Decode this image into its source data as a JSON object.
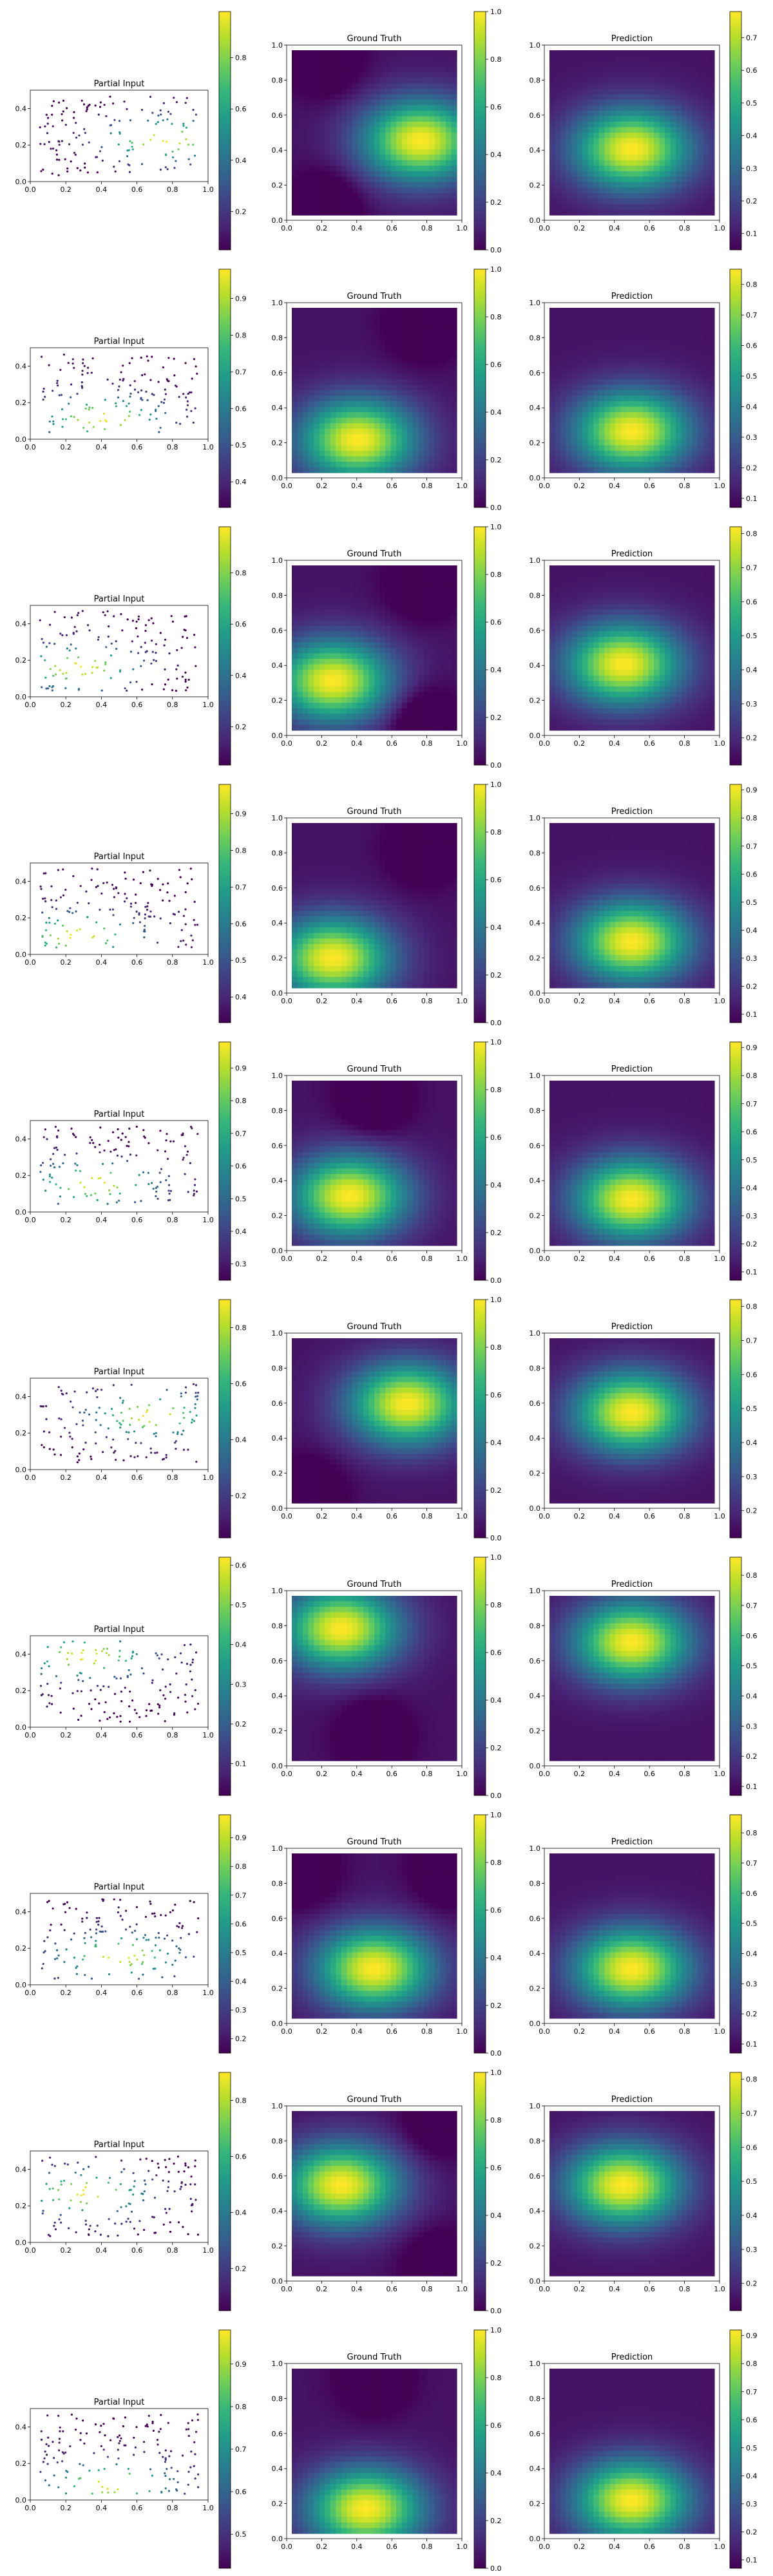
{
  "figure": {
    "rows": 10,
    "panel_titles": {
      "partial": "Partial Input",
      "truth": "Ground Truth",
      "pred": "Prediction"
    }
  },
  "chart_data": [
    {
      "row": 1,
      "type": "scatter+heatmap",
      "partial": {
        "xlim": [
          0,
          1
        ],
        "ylim": [
          0,
          0.5
        ],
        "xticks": [
          "0.0",
          "0.2",
          "0.4",
          "0.6",
          "0.8",
          "1.0"
        ],
        "yticks": [
          "0.0",
          "0.2",
          "0.4"
        ],
        "cbar_ticks": [
          "0.2",
          "0.4",
          "0.6",
          "0.8"
        ],
        "cbar_range": [
          0.05,
          0.98
        ]
      },
      "truth": {
        "xlim": [
          0,
          1
        ],
        "ylim": [
          0,
          1
        ],
        "xticks": [
          "0.0",
          "0.2",
          "0.4",
          "0.6",
          "0.8",
          "1.0"
        ],
        "yticks": [
          "0.0",
          "0.2",
          "0.4",
          "0.6",
          "0.8",
          "1.0"
        ],
        "cbar_ticks": [
          "0.0",
          "0.2",
          "0.4",
          "0.6",
          "0.8",
          "1.0"
        ],
        "cbar_range": [
          0,
          1
        ],
        "peak": [
          0.78,
          0.45
        ],
        "lows": [
          [
            0.2,
            0.95
          ],
          [
            0.2,
            0.05
          ]
        ]
      },
      "pred": {
        "xticks": [
          "0.0",
          "0.2",
          "0.4",
          "0.6",
          "0.8",
          "1.0"
        ],
        "yticks": [
          "0.0",
          "0.2",
          "0.4",
          "0.6",
          "0.8",
          "1.0"
        ],
        "cbar_ticks": [
          "0.1",
          "0.2",
          "0.3",
          "0.4",
          "0.5",
          "0.6",
          "0.7"
        ],
        "cbar_range": [
          0.05,
          0.78
        ],
        "peak": [
          0.5,
          0.4
        ]
      }
    },
    {
      "row": 2,
      "type": "scatter+heatmap",
      "partial": {
        "xlim": [
          0,
          1
        ],
        "ylim": [
          0,
          0.5
        ],
        "xticks": [
          "0.0",
          "0.2",
          "0.4",
          "0.6",
          "0.8",
          "1.0"
        ],
        "yticks": [
          "0.0",
          "0.2",
          "0.4"
        ],
        "cbar_ticks": [
          "0.4",
          "0.5",
          "0.6",
          "0.7",
          "0.8",
          "0.9"
        ],
        "cbar_range": [
          0.33,
          0.98
        ]
      },
      "truth": {
        "xlim": [
          0,
          1
        ],
        "ylim": [
          0,
          1
        ],
        "xticks": [
          "0.0",
          "0.2",
          "0.4",
          "0.6",
          "0.8",
          "1.0"
        ],
        "yticks": [
          "0.0",
          "0.2",
          "0.4",
          "0.6",
          "0.8",
          "1.0"
        ],
        "cbar_ticks": [
          "0.0",
          "0.2",
          "0.4",
          "0.6",
          "0.8",
          "1.0"
        ],
        "cbar_range": [
          0,
          1
        ],
        "peak": [
          0.4,
          0.2
        ],
        "lows": [
          [
            0.8,
            0.9
          ]
        ]
      },
      "pred": {
        "xticks": [
          "0.0",
          "0.2",
          "0.4",
          "0.6",
          "0.8",
          "1.0"
        ],
        "yticks": [
          "0.0",
          "0.2",
          "0.4",
          "0.6",
          "0.8",
          "1.0"
        ],
        "cbar_ticks": [
          "0.1",
          "0.2",
          "0.3",
          "0.4",
          "0.5",
          "0.6",
          "0.7",
          "0.8"
        ],
        "cbar_range": [
          0.07,
          0.85
        ],
        "peak": [
          0.5,
          0.25
        ]
      }
    },
    {
      "row": 3,
      "type": "scatter+heatmap",
      "partial": {
        "xlim": [
          0,
          1
        ],
        "ylim": [
          0,
          0.5
        ],
        "xticks": [
          "0.0",
          "0.2",
          "0.4",
          "0.6",
          "0.8",
          "1.0"
        ],
        "yticks": [
          "0.0",
          "0.2",
          "0.4"
        ],
        "cbar_ticks": [
          "0.2",
          "0.4",
          "0.6",
          "0.8"
        ],
        "cbar_range": [
          0.05,
          0.98
        ]
      },
      "truth": {
        "xlim": [
          0,
          1
        ],
        "ylim": [
          0,
          1
        ],
        "xticks": [
          "0.0",
          "0.2",
          "0.4",
          "0.6",
          "0.8",
          "1.0"
        ],
        "yticks": [
          "0.0",
          "0.2",
          "0.4",
          "0.6",
          "0.8",
          "1.0"
        ],
        "cbar_ticks": [
          "0.0",
          "0.2",
          "0.4",
          "0.6",
          "0.8",
          "1.0"
        ],
        "cbar_range": [
          0,
          1
        ],
        "peak": [
          0.25,
          0.3
        ],
        "lows": [
          [
            0.8,
            0.9
          ],
          [
            0.8,
            0.05
          ]
        ]
      },
      "pred": {
        "xticks": [
          "0.0",
          "0.2",
          "0.4",
          "0.6",
          "0.8",
          "1.0"
        ],
        "yticks": [
          "0.0",
          "0.2",
          "0.4",
          "0.6",
          "0.8",
          "1.0"
        ],
        "cbar_ticks": [
          "0.2",
          "0.3",
          "0.4",
          "0.5",
          "0.6",
          "0.7",
          "0.8"
        ],
        "cbar_range": [
          0.12,
          0.82
        ],
        "peak": [
          0.45,
          0.4
        ]
      }
    },
    {
      "row": 4,
      "type": "scatter+heatmap",
      "partial": {
        "xlim": [
          0,
          1
        ],
        "ylim": [
          0,
          0.5
        ],
        "xticks": [
          "0.0",
          "0.2",
          "0.4",
          "0.6",
          "0.8",
          "1.0"
        ],
        "yticks": [
          "0.0",
          "0.2",
          "0.4"
        ],
        "cbar_ticks": [
          "0.4",
          "0.5",
          "0.6",
          "0.7",
          "0.8",
          "0.9"
        ],
        "cbar_range": [
          0.33,
          0.98
        ]
      },
      "truth": {
        "xlim": [
          0,
          1
        ],
        "ylim": [
          0,
          1
        ],
        "xticks": [
          "0.0",
          "0.2",
          "0.4",
          "0.6",
          "0.8",
          "1.0"
        ],
        "yticks": [
          "0.0",
          "0.2",
          "0.4",
          "0.6",
          "0.8",
          "1.0"
        ],
        "cbar_ticks": [
          "0.0",
          "0.2",
          "0.4",
          "0.6",
          "0.8",
          "1.0"
        ],
        "cbar_range": [
          0,
          1
        ],
        "peak": [
          0.25,
          0.18
        ],
        "lows": [
          [
            0.8,
            0.85
          ]
        ]
      },
      "pred": {
        "xticks": [
          "0.0",
          "0.2",
          "0.4",
          "0.6",
          "0.8",
          "1.0"
        ],
        "yticks": [
          "0.0",
          "0.2",
          "0.4",
          "0.6",
          "0.8",
          "1.0"
        ],
        "cbar_ticks": [
          "0.1",
          "0.2",
          "0.3",
          "0.4",
          "0.5",
          "0.6",
          "0.7",
          "0.8",
          "0.9"
        ],
        "cbar_range": [
          0.07,
          0.92
        ],
        "peak": [
          0.5,
          0.28
        ]
      }
    },
    {
      "row": 5,
      "type": "scatter+heatmap",
      "partial": {
        "xlim": [
          0,
          1
        ],
        "ylim": [
          0,
          0.5
        ],
        "xticks": [
          "0.0",
          "0.2",
          "0.4",
          "0.6",
          "0.8",
          "1.0"
        ],
        "yticks": [
          "0.0",
          "0.2",
          "0.4"
        ],
        "cbar_ticks": [
          "0.3",
          "0.4",
          "0.5",
          "0.6",
          "0.7",
          "0.8",
          "0.9"
        ],
        "cbar_range": [
          0.25,
          0.98
        ]
      },
      "truth": {
        "xlim": [
          0,
          1
        ],
        "ylim": [
          0,
          1
        ],
        "xticks": [
          "0.0",
          "0.2",
          "0.4",
          "0.6",
          "0.8",
          "1.0"
        ],
        "yticks": [
          "0.0",
          "0.2",
          "0.4",
          "0.6",
          "0.8",
          "1.0"
        ],
        "cbar_ticks": [
          "0.0",
          "0.2",
          "0.4",
          "0.6",
          "0.8",
          "1.0"
        ],
        "cbar_range": [
          0,
          1
        ],
        "peak": [
          0.35,
          0.3
        ],
        "lows": [
          [
            0.5,
            0.9
          ]
        ]
      },
      "pred": {
        "xticks": [
          "0.0",
          "0.2",
          "0.4",
          "0.6",
          "0.8",
          "1.0"
        ],
        "yticks": [
          "0.0",
          "0.2",
          "0.4",
          "0.6",
          "0.8",
          "1.0"
        ],
        "cbar_ticks": [
          "0.1",
          "0.2",
          "0.3",
          "0.4",
          "0.5",
          "0.6",
          "0.7",
          "0.8",
          "0.9"
        ],
        "cbar_range": [
          0.07,
          0.92
        ],
        "peak": [
          0.5,
          0.28
        ]
      }
    },
    {
      "row": 6,
      "type": "scatter+heatmap",
      "partial": {
        "xlim": [
          0,
          1
        ],
        "ylim": [
          0,
          0.5
        ],
        "xticks": [
          "0.0",
          "0.2",
          "0.4",
          "0.6",
          "0.8",
          "1.0"
        ],
        "yticks": [
          "0.0",
          "0.2",
          "0.4"
        ],
        "cbar_ticks": [
          "0.2",
          "0.4",
          "0.6",
          "0.8"
        ],
        "cbar_range": [
          0.05,
          0.9
        ]
      },
      "truth": {
        "xlim": [
          0,
          1
        ],
        "ylim": [
          0,
          1
        ],
        "xticks": [
          "0.0",
          "0.2",
          "0.4",
          "0.6",
          "0.8",
          "1.0"
        ],
        "yticks": [
          "0.0",
          "0.2",
          "0.4",
          "0.6",
          "0.8",
          "1.0"
        ],
        "cbar_ticks": [
          "0.0",
          "0.2",
          "0.4",
          "0.6",
          "0.8",
          "1.0"
        ],
        "cbar_range": [
          0,
          1
        ],
        "peak": [
          0.7,
          0.6
        ],
        "lows": [
          [
            0.1,
            0.05
          ]
        ]
      },
      "pred": {
        "xticks": [
          "0.0",
          "0.2",
          "0.4",
          "0.6",
          "0.8",
          "1.0"
        ],
        "yticks": [
          "0.0",
          "0.2",
          "0.4",
          "0.6",
          "0.8",
          "1.0"
        ],
        "cbar_ticks": [
          "0.2",
          "0.3",
          "0.4",
          "0.5",
          "0.6",
          "0.7",
          "0.8"
        ],
        "cbar_range": [
          0.12,
          0.82
        ],
        "peak": [
          0.5,
          0.55
        ]
      }
    },
    {
      "row": 7,
      "type": "scatter+heatmap",
      "partial": {
        "xlim": [
          0,
          1
        ],
        "ylim": [
          0,
          0.5
        ],
        "xticks": [
          "0.0",
          "0.2",
          "0.4",
          "0.6",
          "0.8",
          "1.0"
        ],
        "yticks": [
          "0.0",
          "0.2",
          "0.4"
        ],
        "cbar_ticks": [
          "0.1",
          "0.2",
          "0.3",
          "0.4",
          "0.5",
          "0.6"
        ],
        "cbar_range": [
          0.02,
          0.62
        ]
      },
      "truth": {
        "xlim": [
          0,
          1
        ],
        "ylim": [
          0,
          1
        ],
        "xticks": [
          "0.0",
          "0.2",
          "0.4",
          "0.6",
          "0.8",
          "1.0"
        ],
        "yticks": [
          "0.0",
          "0.2",
          "0.4",
          "0.6",
          "0.8",
          "1.0"
        ],
        "cbar_ticks": [
          "0.0",
          "0.2",
          "0.4",
          "0.6",
          "0.8",
          "1.0"
        ],
        "cbar_range": [
          0,
          1
        ],
        "peak": [
          0.3,
          0.8
        ],
        "lows": [
          [
            0.5,
            0.15
          ]
        ]
      },
      "pred": {
        "xticks": [
          "0.0",
          "0.2",
          "0.4",
          "0.6",
          "0.8",
          "1.0"
        ],
        "yticks": [
          "0.0",
          "0.2",
          "0.4",
          "0.6",
          "0.8",
          "1.0"
        ],
        "cbar_ticks": [
          "0.1",
          "0.2",
          "0.3",
          "0.4",
          "0.5",
          "0.6",
          "0.7",
          "0.8"
        ],
        "cbar_range": [
          0.07,
          0.86
        ],
        "peak": [
          0.5,
          0.72
        ]
      }
    },
    {
      "row": 8,
      "type": "scatter+heatmap",
      "partial": {
        "xlim": [
          0,
          1
        ],
        "ylim": [
          0,
          0.5
        ],
        "xticks": [
          "0.0",
          "0.2",
          "0.4",
          "0.6",
          "0.8",
          "1.0"
        ],
        "yticks": [
          "0.0",
          "0.2",
          "0.4"
        ],
        "cbar_ticks": [
          "0.2",
          "0.3",
          "0.4",
          "0.5",
          "0.6",
          "0.7",
          "0.8",
          "0.9"
        ],
        "cbar_range": [
          0.15,
          0.98
        ]
      },
      "truth": {
        "xlim": [
          0,
          1
        ],
        "ylim": [
          0,
          1
        ],
        "xticks": [
          "0.0",
          "0.2",
          "0.4",
          "0.6",
          "0.8",
          "1.0"
        ],
        "yticks": [
          "0.0",
          "0.2",
          "0.4",
          "0.6",
          "0.8",
          "1.0"
        ],
        "cbar_ticks": [
          "0.0",
          "0.2",
          "0.4",
          "0.6",
          "0.8",
          "1.0"
        ],
        "cbar_range": [
          0,
          1
        ],
        "peak": [
          0.5,
          0.3
        ],
        "lows": [
          [
            0.05,
            0.9
          ],
          [
            0.95,
            0.9
          ]
        ]
      },
      "pred": {
        "xticks": [
          "0.0",
          "0.2",
          "0.4",
          "0.6",
          "0.8",
          "1.0"
        ],
        "yticks": [
          "0.0",
          "0.2",
          "0.4",
          "0.6",
          "0.8",
          "1.0"
        ],
        "cbar_ticks": [
          "0.1",
          "0.2",
          "0.3",
          "0.4",
          "0.5",
          "0.6",
          "0.7",
          "0.8"
        ],
        "cbar_range": [
          0.07,
          0.86
        ],
        "peak": [
          0.5,
          0.3
        ]
      }
    },
    {
      "row": 9,
      "type": "scatter+heatmap",
      "partial": {
        "xlim": [
          0,
          1
        ],
        "ylim": [
          0,
          0.5
        ],
        "xticks": [
          "0.0",
          "0.2",
          "0.4",
          "0.6",
          "0.8",
          "1.0"
        ],
        "yticks": [
          "0.0",
          "0.2",
          "0.4"
        ],
        "cbar_ticks": [
          "0.2",
          "0.4",
          "0.6",
          "0.8"
        ],
        "cbar_range": [
          0.05,
          0.9
        ]
      },
      "truth": {
        "xlim": [
          0,
          1
        ],
        "ylim": [
          0,
          1
        ],
        "xticks": [
          "0.0",
          "0.2",
          "0.4",
          "0.6",
          "0.8",
          "1.0"
        ],
        "yticks": [
          "0.0",
          "0.2",
          "0.4",
          "0.6",
          "0.8",
          "1.0"
        ],
        "cbar_ticks": [
          "0.0",
          "0.2",
          "0.4",
          "0.6",
          "0.8",
          "1.0"
        ],
        "cbar_range": [
          0,
          1
        ],
        "peak": [
          0.3,
          0.55
        ],
        "lows": [
          [
            0.9,
            0.05
          ],
          [
            0.9,
            0.95
          ]
        ]
      },
      "pred": {
        "xticks": [
          "0.0",
          "0.2",
          "0.4",
          "0.6",
          "0.8",
          "1.0"
        ],
        "yticks": [
          "0.0",
          "0.2",
          "0.4",
          "0.6",
          "0.8",
          "1.0"
        ],
        "cbar_ticks": [
          "0.2",
          "0.3",
          "0.4",
          "0.5",
          "0.6",
          "0.7",
          "0.8"
        ],
        "cbar_range": [
          0.12,
          0.82
        ],
        "peak": [
          0.45,
          0.55
        ]
      }
    },
    {
      "row": 10,
      "type": "scatter+heatmap",
      "partial": {
        "xlim": [
          0,
          1
        ],
        "ylim": [
          0,
          0.5
        ],
        "xticks": [
          "0.0",
          "0.2",
          "0.4",
          "0.6",
          "0.8",
          "1.0"
        ],
        "yticks": [
          "0.0",
          "0.2",
          "0.4"
        ],
        "cbar_ticks": [
          "0.5",
          "0.6",
          "0.7",
          "0.8",
          "0.9"
        ],
        "cbar_range": [
          0.42,
          0.98
        ]
      },
      "truth": {
        "xlim": [
          0,
          1
        ],
        "ylim": [
          0,
          1
        ],
        "xticks": [
          "0.0",
          "0.2",
          "0.4",
          "0.6",
          "0.8",
          "1.0"
        ],
        "yticks": [
          "0.0",
          "0.2",
          "0.4",
          "0.6",
          "0.8",
          "1.0"
        ],
        "cbar_ticks": [
          "0.0",
          "0.2",
          "0.4",
          "0.6",
          "0.8",
          "1.0"
        ],
        "cbar_range": [
          0,
          1
        ],
        "peak": [
          0.45,
          0.15
        ],
        "lows": [
          [
            0.5,
            0.95
          ]
        ]
      },
      "pred": {
        "xticks": [
          "0.0",
          "0.2",
          "0.4",
          "0.6",
          "0.8",
          "1.0"
        ],
        "yticks": [
          "0.0",
          "0.2",
          "0.4",
          "0.6",
          "0.8",
          "1.0"
        ],
        "cbar_ticks": [
          "0.1",
          "0.2",
          "0.3",
          "0.4",
          "0.5",
          "0.6",
          "0.7",
          "0.8",
          "0.9"
        ],
        "cbar_range": [
          0.07,
          0.92
        ],
        "peak": [
          0.5,
          0.2
        ]
      }
    }
  ]
}
